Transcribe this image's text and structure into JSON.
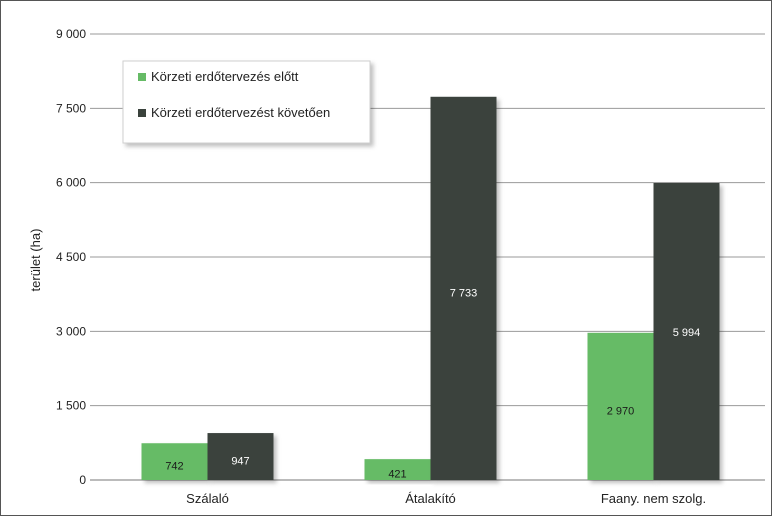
{
  "chart_data": {
    "type": "bar",
    "categories": [
      "Szálaló",
      "Átalakító",
      "Faany. nem szolg."
    ],
    "series": [
      {
        "name": "Körzeti erdőtervezés előtt",
        "values": [
          742,
          421,
          2970
        ],
        "labels": [
          "742",
          "421",
          "2 970"
        ],
        "color": "#66bb66"
      },
      {
        "name": "Körzeti erdőtervezést követően",
        "values": [
          947,
          7733,
          5994
        ],
        "labels": [
          "947",
          "7 733",
          "5 994"
        ],
        "color": "#3a423c"
      }
    ],
    "ylabel": "terület (ha)",
    "ylim": [
      0,
      9000
    ],
    "yticks": [
      0,
      1500,
      3000,
      4500,
      6000,
      7500,
      9000
    ],
    "ytick_labels": [
      "0",
      "1 500",
      "3 000",
      "4 500",
      "6 000",
      "7 500",
      "9 000"
    ],
    "grid": true,
    "legend_position": "top-left"
  }
}
